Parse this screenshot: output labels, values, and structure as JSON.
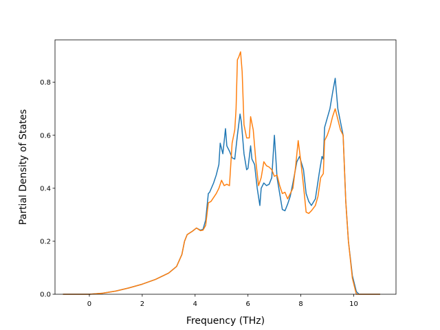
{
  "chart_data": {
    "type": "line",
    "title": "",
    "xlabel": "Frequency (THz)",
    "ylabel": "Partial Density of States",
    "xlim": [
      -1.3,
      11.6
    ],
    "ylim": [
      0,
      0.96
    ],
    "xticks": [
      0,
      2,
      4,
      6,
      8,
      10
    ],
    "yticks": [
      0.0,
      0.2,
      0.4,
      0.6,
      0.8
    ],
    "xtick_labels": [
      "0",
      "2",
      "4",
      "6",
      "8",
      "10"
    ],
    "ytick_labels": [
      "0.0",
      "0.2",
      "0.4",
      "0.6",
      "0.8"
    ],
    "grid": false,
    "legend": "none",
    "series": [
      {
        "color": "#1f77b4",
        "points": [
          [
            -1.0,
            0.0
          ],
          [
            0.0,
            0.0
          ],
          [
            0.5,
            0.004
          ],
          [
            1.0,
            0.012
          ],
          [
            1.5,
            0.024
          ],
          [
            2.0,
            0.038
          ],
          [
            2.5,
            0.056
          ],
          [
            3.0,
            0.08
          ],
          [
            3.3,
            0.105
          ],
          [
            3.5,
            0.15
          ],
          [
            3.6,
            0.2
          ],
          [
            3.7,
            0.225
          ],
          [
            3.9,
            0.238
          ],
          [
            4.05,
            0.25
          ],
          [
            4.2,
            0.242
          ],
          [
            4.3,
            0.245
          ],
          [
            4.4,
            0.28
          ],
          [
            4.5,
            0.38
          ],
          [
            4.55,
            0.385
          ],
          [
            4.7,
            0.42
          ],
          [
            4.8,
            0.45
          ],
          [
            4.9,
            0.49
          ],
          [
            4.95,
            0.57
          ],
          [
            5.05,
            0.53
          ],
          [
            5.15,
            0.625
          ],
          [
            5.2,
            0.56
          ],
          [
            5.3,
            0.54
          ],
          [
            5.4,
            0.515
          ],
          [
            5.5,
            0.51
          ],
          [
            5.6,
            0.6
          ],
          [
            5.7,
            0.68
          ],
          [
            5.75,
            0.65
          ],
          [
            5.85,
            0.53
          ],
          [
            5.95,
            0.47
          ],
          [
            6.0,
            0.475
          ],
          [
            6.1,
            0.56
          ],
          [
            6.15,
            0.51
          ],
          [
            6.25,
            0.49
          ],
          [
            6.35,
            0.4
          ],
          [
            6.45,
            0.335
          ],
          [
            6.5,
            0.4
          ],
          [
            6.6,
            0.42
          ],
          [
            6.7,
            0.41
          ],
          [
            6.8,
            0.415
          ],
          [
            6.9,
            0.44
          ],
          [
            7.0,
            0.6
          ],
          [
            7.1,
            0.44
          ],
          [
            7.2,
            0.38
          ],
          [
            7.3,
            0.32
          ],
          [
            7.4,
            0.315
          ],
          [
            7.5,
            0.34
          ],
          [
            7.6,
            0.37
          ],
          [
            7.7,
            0.42
          ],
          [
            7.85,
            0.5
          ],
          [
            7.95,
            0.52
          ],
          [
            8.1,
            0.47
          ],
          [
            8.2,
            0.38
          ],
          [
            8.3,
            0.35
          ],
          [
            8.4,
            0.335
          ],
          [
            8.55,
            0.36
          ],
          [
            8.7,
            0.46
          ],
          [
            8.8,
            0.52
          ],
          [
            8.85,
            0.51
          ],
          [
            8.9,
            0.63
          ],
          [
            9.0,
            0.665
          ],
          [
            9.1,
            0.7
          ],
          [
            9.2,
            0.76
          ],
          [
            9.3,
            0.815
          ],
          [
            9.4,
            0.7
          ],
          [
            9.5,
            0.65
          ],
          [
            9.6,
            0.6
          ],
          [
            9.7,
            0.35
          ],
          [
            9.8,
            0.2
          ],
          [
            9.95,
            0.07
          ],
          [
            10.1,
            0.01
          ],
          [
            10.2,
            0.0
          ],
          [
            11.0,
            0.0
          ]
        ]
      },
      {
        "color": "#ff7f0e",
        "points": [
          [
            -1.0,
            0.0
          ],
          [
            0.0,
            0.0
          ],
          [
            0.5,
            0.004
          ],
          [
            1.0,
            0.012
          ],
          [
            1.5,
            0.024
          ],
          [
            2.0,
            0.038
          ],
          [
            2.5,
            0.056
          ],
          [
            3.0,
            0.08
          ],
          [
            3.3,
            0.105
          ],
          [
            3.5,
            0.15
          ],
          [
            3.6,
            0.2
          ],
          [
            3.7,
            0.225
          ],
          [
            3.9,
            0.238
          ],
          [
            4.05,
            0.25
          ],
          [
            4.2,
            0.24
          ],
          [
            4.3,
            0.242
          ],
          [
            4.4,
            0.26
          ],
          [
            4.5,
            0.345
          ],
          [
            4.6,
            0.35
          ],
          [
            4.8,
            0.38
          ],
          [
            4.9,
            0.4
          ],
          [
            5.0,
            0.43
          ],
          [
            5.1,
            0.41
          ],
          [
            5.2,
            0.415
          ],
          [
            5.3,
            0.41
          ],
          [
            5.4,
            0.57
          ],
          [
            5.5,
            0.62
          ],
          [
            5.55,
            0.7
          ],
          [
            5.6,
            0.885
          ],
          [
            5.65,
            0.895
          ],
          [
            5.72,
            0.915
          ],
          [
            5.78,
            0.84
          ],
          [
            5.85,
            0.64
          ],
          [
            5.95,
            0.59
          ],
          [
            6.05,
            0.59
          ],
          [
            6.1,
            0.67
          ],
          [
            6.2,
            0.62
          ],
          [
            6.3,
            0.5
          ],
          [
            6.4,
            0.41
          ],
          [
            6.5,
            0.44
          ],
          [
            6.6,
            0.5
          ],
          [
            6.7,
            0.485
          ],
          [
            6.8,
            0.48
          ],
          [
            6.9,
            0.47
          ],
          [
            7.0,
            0.445
          ],
          [
            7.1,
            0.45
          ],
          [
            7.2,
            0.41
          ],
          [
            7.3,
            0.38
          ],
          [
            7.4,
            0.385
          ],
          [
            7.5,
            0.36
          ],
          [
            7.6,
            0.38
          ],
          [
            7.7,
            0.4
          ],
          [
            7.8,
            0.48
          ],
          [
            7.9,
            0.58
          ],
          [
            8.0,
            0.5
          ],
          [
            8.1,
            0.41
          ],
          [
            8.2,
            0.31
          ],
          [
            8.3,
            0.305
          ],
          [
            8.4,
            0.315
          ],
          [
            8.55,
            0.335
          ],
          [
            8.65,
            0.37
          ],
          [
            8.75,
            0.44
          ],
          [
            8.85,
            0.455
          ],
          [
            8.9,
            0.58
          ],
          [
            9.0,
            0.6
          ],
          [
            9.1,
            0.63
          ],
          [
            9.2,
            0.67
          ],
          [
            9.3,
            0.7
          ],
          [
            9.4,
            0.66
          ],
          [
            9.5,
            0.62
          ],
          [
            9.6,
            0.6
          ],
          [
            9.7,
            0.35
          ],
          [
            9.8,
            0.2
          ],
          [
            9.95,
            0.06
          ],
          [
            10.1,
            0.0
          ],
          [
            11.0,
            0.0
          ]
        ]
      }
    ]
  }
}
